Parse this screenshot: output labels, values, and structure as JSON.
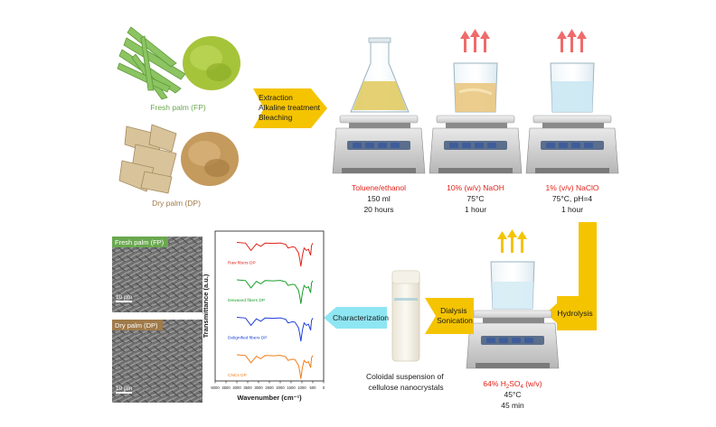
{
  "samples": {
    "fresh_label": "Fresh palm (FP)",
    "dry_label": "Dry palm (DP)"
  },
  "step1": {
    "lines": [
      "Extraction",
      "Alkaline treatment",
      "Bleaching"
    ]
  },
  "stations": [
    {
      "reagent": "Toluene/ethanol",
      "line2": "150 ml",
      "line3": "20 hours"
    },
    {
      "reagent": "10% (w/v) NaOH",
      "line2": "75°C",
      "line3": "1 hour"
    },
    {
      "reagent": "1% (v/v) NaClO",
      "line2": "75°C, pH=4",
      "line3": "1 hour"
    }
  ],
  "hydrolysis": {
    "arrow_label": "Hydrolysis",
    "reagent_prefix": "64% H",
    "reagent_sub1": "2",
    "reagent_mid": "SO",
    "reagent_sub2": "4",
    "reagent_suffix": " (w/v)",
    "line2": "45°C",
    "line3": "45 min"
  },
  "dialysis": {
    "lines": [
      "Dialysis",
      "Sonication"
    ]
  },
  "product": {
    "lines": [
      "Coloidal suspension of",
      "cellulose nanocrystals"
    ]
  },
  "characterization": {
    "label": "Characterization"
  },
  "sem": {
    "fresh_tag": "Fresh palm (FP)",
    "dry_tag": "Dry palm (DP)",
    "scale": "10 µm"
  },
  "chart_data": {
    "type": "line",
    "xlabel": "Wavenumber (cm⁻¹)",
    "ylabel": "Transmittance (a.u.)",
    "xlim": [
      5000,
      0
    ],
    "xticks": [
      5000,
      4500,
      4000,
      3500,
      3000,
      2500,
      2000,
      1500,
      1000,
      500,
      0
    ],
    "series": [
      {
        "name": "Raw fibers DP",
        "color": "#e2231a"
      },
      {
        "name": "Dewaxed fibers DP",
        "color": "#1a9e2a"
      },
      {
        "name": "Delignified fibers DP",
        "color": "#1f3fd8"
      },
      {
        "name": "CNCs DP",
        "color": "#ef7d1a"
      }
    ]
  },
  "colors": {
    "arrow_yellow": "#f5c400",
    "arrow_cyan": "#8fe6f3",
    "reagent_red": "#e2231a",
    "fp_green": "#6aa84f",
    "dp_brown": "#a07a4a"
  }
}
